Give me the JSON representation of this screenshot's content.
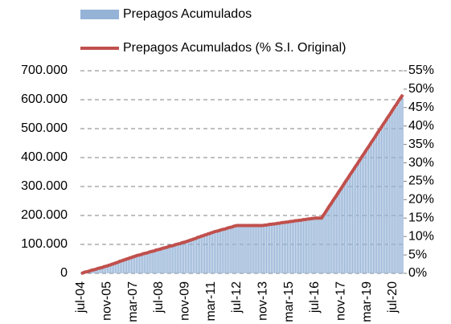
{
  "chart_data": {
    "type": "bar-line",
    "categories": [
      "jul-04",
      null,
      null,
      null,
      null,
      null,
      null,
      null,
      null,
      null,
      null,
      null,
      null,
      null,
      null,
      null,
      "nov-05",
      null,
      null,
      null,
      null,
      null,
      null,
      null,
      null,
      null,
      null,
      null,
      null,
      null,
      null,
      null,
      "mar-07",
      null,
      null,
      null,
      null,
      null,
      null,
      null,
      null,
      null,
      null,
      null,
      null,
      null,
      null,
      null,
      "jul-08",
      null,
      null,
      null,
      null,
      null,
      null,
      null,
      null,
      null,
      null,
      null,
      null,
      null,
      null,
      null,
      "nov-09",
      null,
      null,
      null,
      null,
      null,
      null,
      null,
      null,
      null,
      null,
      null,
      null,
      null,
      null,
      null,
      "mar-11",
      null,
      null,
      null,
      null,
      null,
      null,
      null,
      null,
      null,
      null,
      null,
      null,
      null,
      null,
      null,
      "jul-12",
      null,
      null,
      null,
      null,
      null,
      null,
      null,
      null,
      null,
      null,
      null,
      null,
      null,
      null,
      null,
      "nov-13",
      null,
      null,
      null,
      null,
      null,
      null,
      null,
      null,
      null,
      null,
      null,
      null,
      null,
      null,
      null,
      "mar-15",
      null,
      null,
      null,
      null,
      null,
      null,
      null,
      null,
      null,
      null,
      null,
      null,
      null,
      null,
      null,
      "jul-16",
      null,
      null,
      null,
      null,
      null,
      null,
      null,
      null,
      null,
      null,
      null,
      null,
      null,
      null,
      null,
      "nov-17",
      null,
      null,
      null,
      null,
      null,
      null,
      null,
      null,
      null,
      null,
      null,
      null,
      null,
      null,
      null,
      "mar-19",
      null,
      null,
      null,
      null,
      null,
      null,
      null,
      null,
      null,
      null,
      null,
      null,
      null,
      null,
      null,
      "jul-20",
      null,
      null,
      null,
      null,
      null,
      null
    ],
    "series": [
      {
        "name": "Prepagos Acumulados",
        "kind": "bar",
        "color": "#95b3d7",
        "values": [
          0,
          1250,
          3750,
          5000,
          6250,
          7500,
          10000,
          11250,
          12500,
          13750,
          16250,
          17500,
          18750,
          20000,
          22500,
          23750,
          25000,
          27500,
          28750,
          31250,
          32500,
          35000,
          36250,
          38750,
          41250,
          42500,
          45000,
          46250,
          48750,
          50000,
          52500,
          53750,
          56250,
          57500,
          60000,
          61250,
          62500,
          63750,
          66250,
          67500,
          68750,
          70000,
          72500,
          73750,
          75000,
          76250,
          78750,
          80000,
          81250,
          82500,
          85000,
          86250,
          87500,
          88750,
          91250,
          92500,
          93750,
          95000,
          97500,
          98750,
          100000,
          101250,
          103750,
          105000,
          106250,
          108750,
          110000,
          112500,
          113750,
          116250,
          117500,
          120000,
          122500,
          123750,
          126250,
          127500,
          130000,
          131250,
          133750,
          135000,
          137500,
          138750,
          141250,
          142500,
          143750,
          145000,
          147500,
          148750,
          150000,
          151250,
          153750,
          155000,
          156250,
          157500,
          160000,
          161250,
          162500,
          162500,
          162500,
          162500,
          162500,
          162500,
          162500,
          162500,
          162500,
          162500,
          162500,
          162500,
          162500,
          162500,
          162500,
          162500,
          162500,
          163750,
          163750,
          165000,
          166250,
          166250,
          167500,
          167500,
          168750,
          170000,
          170000,
          171250,
          172500,
          172500,
          173750,
          173750,
          175000,
          176250,
          176250,
          177500,
          178750,
          178750,
          180000,
          180000,
          181250,
          182500,
          182500,
          183750,
          185000,
          185000,
          186250,
          186250,
          187500,
          187500,
          187500,
          187500,
          187500,
          196250,
          203750,
          212500,
          221250,
          230000,
          237500,
          246250,
          255000,
          262500,
          271250,
          280000,
          287500,
          296250,
          305000,
          313750,
          321250,
          330000,
          338750,
          346250,
          355000,
          363750,
          371250,
          380000,
          388750,
          397500,
          405000,
          413750,
          422500,
          430000,
          438750,
          447500,
          455000,
          463750,
          472500,
          481250,
          488750,
          497500,
          506250,
          513750,
          522500,
          531250,
          538750,
          547500,
          556250,
          565000,
          572500,
          581250,
          590000,
          597500,
          606250
        ]
      },
      {
        "name": "Prepagos Acumulados (% S.I. Original)",
        "kind": "line",
        "axis": "y2",
        "color": "#c0504d",
        "values": [
          0,
          0.1,
          0.3,
          0.4,
          0.5,
          0.6,
          0.8,
          0.9,
          1.0,
          1.1,
          1.3,
          1.4,
          1.5,
          1.6,
          1.8,
          1.9,
          2.0,
          2.2,
          2.3,
          2.5,
          2.6,
          2.8,
          2.9,
          3.1,
          3.3,
          3.4,
          3.6,
          3.7,
          3.9,
          4.0,
          4.2,
          4.3,
          4.5,
          4.6,
          4.8,
          4.9,
          5.0,
          5.1,
          5.3,
          5.4,
          5.5,
          5.6,
          5.8,
          5.9,
          6.0,
          6.1,
          6.3,
          6.4,
          6.5,
          6.6,
          6.8,
          6.9,
          7.0,
          7.1,
          7.3,
          7.4,
          7.5,
          7.6,
          7.8,
          7.9,
          8.0,
          8.1,
          8.3,
          8.4,
          8.5,
          8.7,
          8.8,
          9.0,
          9.1,
          9.3,
          9.4,
          9.6,
          9.8,
          9.9,
          10.1,
          10.2,
          10.4,
          10.5,
          10.7,
          10.8,
          11.0,
          11.1,
          11.3,
          11.4,
          11.5,
          11.6,
          11.8,
          11.9,
          12.0,
          12.1,
          12.3,
          12.4,
          12.5,
          12.6,
          12.8,
          12.9,
          13.0,
          13.0,
          13.0,
          13.0,
          13.0,
          13.0,
          13.0,
          13.0,
          13.0,
          13.0,
          13.0,
          13.0,
          13.0,
          13.0,
          13.0,
          13.0,
          13.0,
          13.1,
          13.1,
          13.2,
          13.3,
          13.3,
          13.4,
          13.4,
          13.5,
          13.6,
          13.6,
          13.7,
          13.8,
          13.8,
          13.9,
          13.9,
          14.0,
          14.1,
          14.1,
          14.2,
          14.3,
          14.3,
          14.4,
          14.4,
          14.5,
          14.6,
          14.6,
          14.7,
          14.8,
          14.8,
          14.9,
          14.9,
          15.0,
          15.0,
          15.0,
          15.0,
          15.0,
          15.7,
          16.3,
          17.0,
          17.7,
          18.4,
          19.0,
          19.7,
          20.4,
          21.0,
          21.7,
          22.4,
          23.0,
          23.7,
          24.4,
          25.1,
          25.7,
          26.4,
          27.1,
          27.7,
          28.4,
          29.1,
          29.7,
          30.4,
          31.1,
          31.8,
          32.4,
          33.1,
          33.8,
          34.4,
          35.1,
          35.8,
          36.4,
          37.1,
          37.8,
          38.5,
          39.1,
          39.8,
          40.5,
          41.1,
          41.8,
          42.5,
          43.1,
          43.8,
          44.5,
          45.2,
          45.8,
          46.5,
          47.2,
          47.8,
          48.5
        ]
      }
    ],
    "ylim": [
      0,
      700000
    ],
    "yticks": [
      0,
      {
        "value": 100000,
        "label": "100.000"
      },
      {
        "value": 200000,
        "label": "200.000"
      },
      {
        "value": 300000,
        "label": "300.000"
      },
      {
        "value": 400000,
        "label": "400.000"
      },
      {
        "value": 500000,
        "label": "500.000"
      },
      {
        "value": 600000,
        "label": "600.000"
      },
      {
        "value": 700000,
        "label": "700.000"
      }
    ],
    "y2lim": [
      0,
      55
    ],
    "y2ticks": [
      {
        "value": 0,
        "label": "0%"
      },
      {
        "value": 5,
        "label": "5%"
      },
      {
        "value": 10,
        "label": "10%"
      },
      {
        "value": 15,
        "label": "15%"
      },
      {
        "value": 20,
        "label": "20%"
      },
      {
        "value": 25,
        "label": "25%"
      },
      {
        "value": 30,
        "label": "30%"
      },
      {
        "value": 35,
        "label": "35%"
      },
      {
        "value": 40,
        "label": "40%"
      },
      {
        "value": 45,
        "label": "45%"
      },
      {
        "value": 50,
        "label": "50%"
      },
      {
        "value": 55,
        "label": "55%"
      }
    ],
    "grid": true
  }
}
